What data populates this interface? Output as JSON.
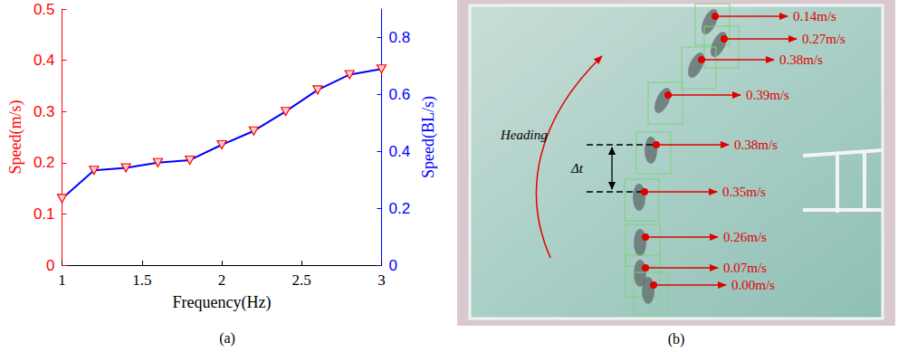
{
  "chart_data": {
    "type": "line",
    "panel_label": "(a)",
    "x_label": "Frequency(Hz)",
    "y_label": "Speed(m/s)",
    "y2_label": "Speed(BL/s)",
    "x": [
      1,
      1.2,
      1.4,
      1.6,
      1.8,
      2,
      2.2,
      2.4,
      2.6,
      2.8,
      3
    ],
    "series": [
      {
        "color": "#0000ff",
        "marker": "triangle_down",
        "line_style": "solid",
        "values": [
          0.13,
          0.185,
          0.19,
          0.2,
          0.205,
          0.235,
          0.262,
          0.3,
          0.342,
          0.372,
          0.383
        ]
      }
    ],
    "xlim": [
      1,
      3
    ],
    "xticks": [
      1,
      1.5,
      2,
      2.5,
      3
    ],
    "ylim": [
      0,
      0.5
    ],
    "yticks": [
      0,
      0.1,
      0.2,
      0.3,
      0.4,
      0.5
    ],
    "y2lim": [
      0,
      0.9
    ],
    "y2ticks": [
      0,
      0.2,
      0.4,
      0.6,
      0.8
    ],
    "grid": false
  },
  "panel_b": {
    "panel_label": "(b)",
    "heading_label": "Heading",
    "interval_label": "Δt",
    "speed_labels": [
      "0.14m/s",
      "0.27m/s",
      "0.38m/s",
      "0.39m/s",
      "0.38m/s",
      "0.35m/s",
      "0.26m/s",
      "0.07m/s",
      "0.00m/s"
    ]
  }
}
